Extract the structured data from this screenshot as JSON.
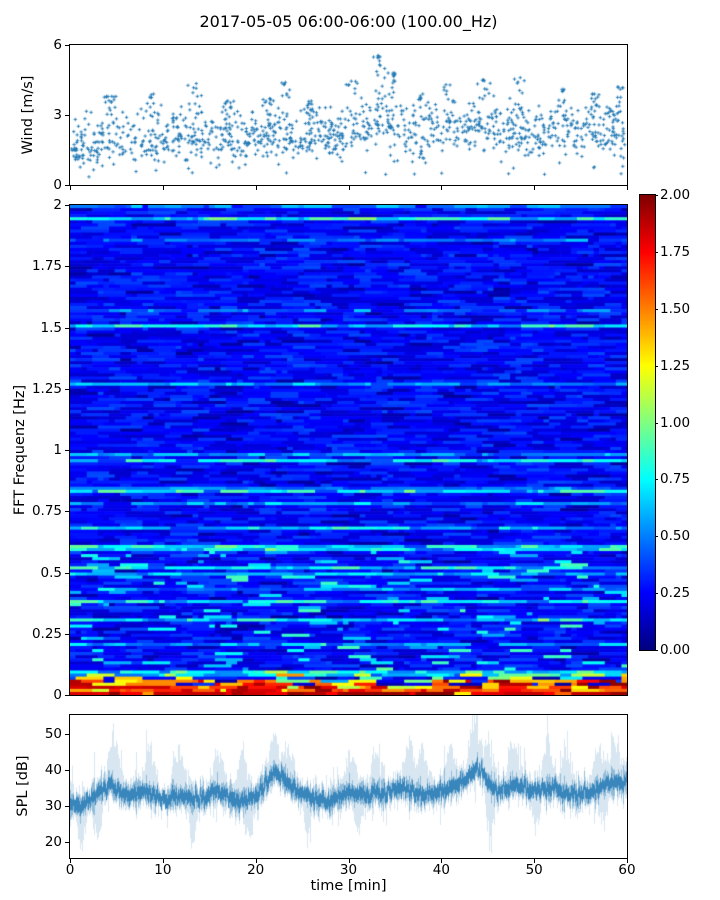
{
  "title": "2017-05-05 06:00-06:00 (100.00_Hz)",
  "colors": {
    "series_blue": "#1f77b4",
    "axis": "#000000",
    "background": "#ffffff"
  },
  "chart_data": [
    {
      "id": "wind",
      "type": "scatter",
      "marker": "+",
      "color": "#1f77b4",
      "ylabel": "Wind [m/s]",
      "ylim": [
        0,
        6
      ],
      "yticks": [
        0,
        3,
        6
      ],
      "ytick_labels": [
        "0",
        "3",
        "6"
      ],
      "xlim": [
        0,
        60
      ],
      "xticks": [
        0,
        10,
        20,
        30,
        40,
        50,
        60
      ],
      "x_tick_labels_visible": false,
      "grid": false,
      "n_points": 1150,
      "seed": 42,
      "noise_sd": 0.5,
      "low_fraction": 0.025,
      "mean_t": [
        0,
        2,
        4,
        6,
        8,
        10,
        12,
        14,
        16,
        18,
        20,
        22,
        24,
        26,
        28,
        30,
        32,
        34,
        36,
        38,
        40,
        42,
        44,
        46,
        48,
        50,
        52,
        54,
        56,
        58,
        60
      ],
      "mean_v": [
        1.5,
        1.7,
        2.1,
        1.8,
        1.9,
        2.0,
        2.1,
        1.9,
        1.9,
        2.0,
        2.2,
        2.3,
        2.0,
        2.1,
        2.0,
        2.3,
        2.6,
        2.8,
        2.4,
        2.0,
        2.3,
        2.5,
        2.6,
        2.4,
        2.5,
        2.3,
        2.2,
        2.3,
        2.2,
        2.3,
        2.2
      ],
      "bursts": [
        [
          4.5,
          3.8
        ],
        [
          9,
          3.9
        ],
        [
          13.6,
          4.35
        ],
        [
          17,
          3.6
        ],
        [
          21.5,
          3.7
        ],
        [
          23.2,
          4.4
        ],
        [
          26,
          3.6
        ],
        [
          30.3,
          4.45
        ],
        [
          33.2,
          5.55
        ],
        [
          34.8,
          4.8
        ],
        [
          38,
          3.9
        ],
        [
          40.5,
          4.3
        ],
        [
          44.5,
          4.5
        ],
        [
          48.5,
          4.6
        ],
        [
          53,
          4.1
        ],
        [
          56.5,
          3.9
        ],
        [
          59,
          4.2
        ]
      ]
    },
    {
      "id": "spectrogram",
      "type": "heatmap",
      "colormap": "jet",
      "ylabel": "FFT Frequenz [Hz]",
      "ylim": [
        0,
        2
      ],
      "yticks": [
        2,
        1.75,
        1.5,
        1.25,
        1,
        0.75,
        0.5,
        0.25,
        0
      ],
      "ytick_labels": [
        "2",
        "1.75",
        "1.5",
        "1.25",
        "1",
        "0.75",
        "0.5",
        "0.25",
        "0"
      ],
      "xlim": [
        0,
        60
      ],
      "vmin": 0,
      "vmax": 2,
      "grid": false,
      "rows": 160,
      "cols": 100,
      "seed": 7,
      "base_range": [
        0.14,
        0.4
      ],
      "streak_row_prob": 0.17,
      "warm_band_frac": 0.075,
      "warm_t": [
        0,
        4,
        8,
        12,
        16,
        20,
        24,
        28,
        32,
        36,
        40,
        44,
        48,
        52,
        56,
        60
      ],
      "warm_v": [
        0.7,
        1.25,
        0.8,
        1.0,
        0.75,
        0.85,
        1.1,
        0.7,
        0.95,
        0.8,
        0.9,
        1.45,
        0.9,
        1.0,
        0.8,
        0.9
      ],
      "colorbar": {
        "ticks": [
          2.0,
          1.75,
          1.5,
          1.25,
          1.0,
          0.75,
          0.5,
          0.25,
          0.0
        ],
        "tick_labels": [
          "2.00",
          "1.75",
          "1.50",
          "1.25",
          "1.00",
          "0.75",
          "0.50",
          "0.25",
          "0.00"
        ],
        "position": "right"
      }
    },
    {
      "id": "spl",
      "type": "line",
      "color": "#1f77b4",
      "ylabel": "SPL [dB]",
      "xlabel": "time [min]",
      "ylim": [
        15.5,
        55.4
      ],
      "yticks": [
        20,
        30,
        40,
        50
      ],
      "ytick_labels": [
        "20",
        "30",
        "40",
        "50"
      ],
      "xlim": [
        0,
        60
      ],
      "xticks": [
        0,
        10,
        20,
        30,
        40,
        50,
        60
      ],
      "xtick_labels": [
        "0",
        "10",
        "20",
        "30",
        "40",
        "50",
        "60"
      ],
      "grid": false,
      "seed": 99,
      "mean_t": [
        0,
        2,
        4,
        6,
        8,
        10,
        12,
        14,
        16,
        18,
        20,
        22,
        24,
        26,
        28,
        30,
        32,
        34,
        36,
        38,
        40,
        42,
        44,
        46,
        48,
        50,
        52,
        54,
        56,
        58,
        60
      ],
      "mean_v": [
        30,
        31,
        36,
        33,
        34,
        32,
        33,
        32,
        34,
        31,
        32,
        40,
        35,
        32,
        31,
        34,
        33,
        34,
        35,
        33,
        34,
        36,
        41,
        34,
        36,
        34,
        35,
        33,
        34,
        36,
        37
      ],
      "peaks": [
        [
          4.7,
          50
        ],
        [
          8.6,
          45
        ],
        [
          11.7,
          44
        ],
        [
          16,
          44
        ],
        [
          18.6,
          43
        ],
        [
          22,
          48
        ],
        [
          23.5,
          44
        ],
        [
          30.3,
          43
        ],
        [
          33,
          44
        ],
        [
          36.6,
          46
        ],
        [
          38,
          44
        ],
        [
          41,
          45
        ],
        [
          43.6,
          55
        ],
        [
          45,
          46
        ],
        [
          47.8,
          47
        ],
        [
          51.5,
          46
        ],
        [
          53.5,
          44
        ],
        [
          57,
          45
        ],
        [
          58.7,
          46
        ]
      ],
      "dips": [
        [
          1.2,
          20
        ],
        [
          3.0,
          22
        ],
        [
          13.2,
          21
        ],
        [
          19.3,
          20
        ],
        [
          25.6,
          22
        ],
        [
          31,
          24
        ],
        [
          45.3,
          19
        ],
        [
          50.2,
          24
        ],
        [
          57.5,
          25
        ]
      ]
    }
  ]
}
